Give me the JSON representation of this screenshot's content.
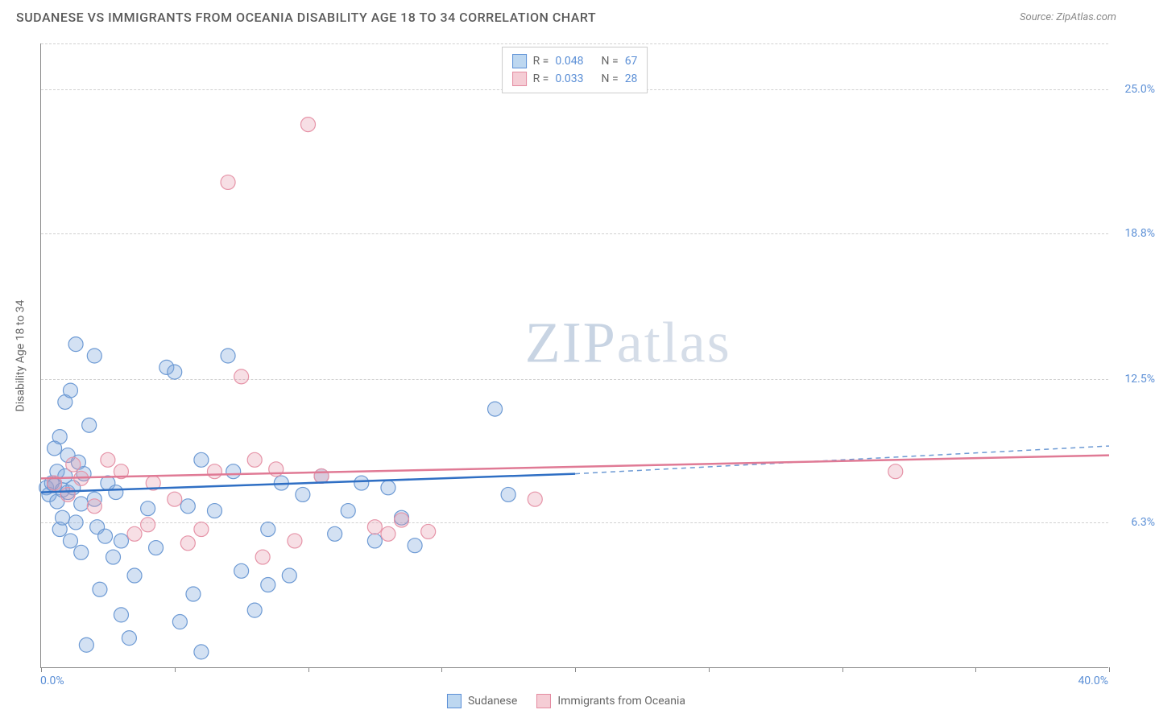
{
  "title": "SUDANESE VS IMMIGRANTS FROM OCEANIA DISABILITY AGE 18 TO 34 CORRELATION CHART",
  "source": "Source: ZipAtlas.com",
  "ylabel": "Disability Age 18 to 34",
  "watermark_a": "ZIP",
  "watermark_b": "atlas",
  "xaxis": {
    "min": 0.0,
    "max": 40.0,
    "min_label": "0.0%",
    "max_label": "40.0%",
    "ticks_x": [
      0,
      5,
      10,
      15,
      20,
      25,
      30,
      35,
      40
    ]
  },
  "yaxis": {
    "min": 0.0,
    "max": 27.0,
    "ticks": [
      {
        "v": 6.3,
        "label": "6.3%"
      },
      {
        "v": 12.5,
        "label": "12.5%"
      },
      {
        "v": 18.8,
        "label": "18.8%"
      },
      {
        "v": 25.0,
        "label": "25.0%"
      }
    ]
  },
  "series": [
    {
      "name": "Sudanese",
      "swatch_fill": "#bdd7f0",
      "swatch_stroke": "#5b8fd6",
      "point_fill": "rgba(130,170,220,0.35)",
      "point_stroke": "#6d9ad4",
      "point_r": 9,
      "line_color": "#2f6fc4",
      "dash_color": "#6d9ad4",
      "R": "0.048",
      "N": "67",
      "trend": {
        "x1": 0,
        "y1": 7.6,
        "x2": 20,
        "y2": 8.4
      },
      "trend_dash": {
        "x1": 20,
        "y1": 8.4,
        "x2": 40,
        "y2": 9.6
      },
      "points": [
        [
          0.2,
          7.8
        ],
        [
          0.3,
          7.5
        ],
        [
          0.4,
          8.0
        ],
        [
          0.5,
          7.9
        ],
        [
          0.5,
          9.5
        ],
        [
          0.6,
          7.2
        ],
        [
          0.6,
          8.5
        ],
        [
          0.7,
          6.0
        ],
        [
          0.7,
          10.0
        ],
        [
          0.8,
          7.7
        ],
        [
          0.8,
          6.5
        ],
        [
          0.9,
          8.3
        ],
        [
          0.9,
          11.5
        ],
        [
          1.0,
          7.6
        ],
        [
          1.0,
          9.2
        ],
        [
          1.1,
          5.5
        ],
        [
          1.1,
          12.0
        ],
        [
          1.2,
          7.8
        ],
        [
          1.3,
          6.3
        ],
        [
          1.3,
          14.0
        ],
        [
          1.4,
          8.9
        ],
        [
          1.5,
          7.1
        ],
        [
          1.5,
          5.0
        ],
        [
          1.6,
          8.4
        ],
        [
          1.7,
          1.0
        ],
        [
          1.8,
          10.5
        ],
        [
          2.0,
          13.5
        ],
        [
          2.0,
          7.3
        ],
        [
          2.1,
          6.1
        ],
        [
          2.2,
          3.4
        ],
        [
          2.4,
          5.7
        ],
        [
          2.5,
          8.0
        ],
        [
          2.7,
          4.8
        ],
        [
          2.8,
          7.6
        ],
        [
          3.0,
          5.5
        ],
        [
          3.0,
          2.3
        ],
        [
          3.3,
          1.3
        ],
        [
          3.5,
          4.0
        ],
        [
          4.0,
          6.9
        ],
        [
          4.3,
          5.2
        ],
        [
          4.7,
          13.0
        ],
        [
          5.0,
          12.8
        ],
        [
          5.2,
          2.0
        ],
        [
          5.5,
          7.0
        ],
        [
          5.7,
          3.2
        ],
        [
          6.0,
          0.7
        ],
        [
          6.0,
          9.0
        ],
        [
          6.5,
          6.8
        ],
        [
          7.0,
          13.5
        ],
        [
          7.2,
          8.5
        ],
        [
          7.5,
          4.2
        ],
        [
          8.0,
          2.5
        ],
        [
          8.5,
          3.6
        ],
        [
          8.5,
          6.0
        ],
        [
          9.0,
          8.0
        ],
        [
          9.3,
          4.0
        ],
        [
          9.8,
          7.5
        ],
        [
          10.5,
          8.3
        ],
        [
          11.0,
          5.8
        ],
        [
          11.5,
          6.8
        ],
        [
          12.0,
          8.0
        ],
        [
          12.5,
          5.5
        ],
        [
          13.0,
          7.8
        ],
        [
          13.5,
          6.5
        ],
        [
          14.0,
          5.3
        ],
        [
          17.0,
          11.2
        ],
        [
          17.5,
          7.5
        ]
      ]
    },
    {
      "name": "Immigrants from Oceania",
      "swatch_fill": "#f5cdd5",
      "swatch_stroke": "#e48ba0",
      "point_fill": "rgba(230,150,170,0.30)",
      "point_stroke": "#e694a8",
      "point_r": 9,
      "line_color": "#e07a95",
      "dash_color": "#e8a0b2",
      "R": "0.033",
      "N": "28",
      "trend": {
        "x1": 0,
        "y1": 8.2,
        "x2": 40,
        "y2": 9.2
      },
      "trend_dash": null,
      "points": [
        [
          0.5,
          8.0
        ],
        [
          1.0,
          7.5
        ],
        [
          1.2,
          8.8
        ],
        [
          1.5,
          8.2
        ],
        [
          2.0,
          7.0
        ],
        [
          2.5,
          9.0
        ],
        [
          3.0,
          8.5
        ],
        [
          3.5,
          5.8
        ],
        [
          4.0,
          6.2
        ],
        [
          4.2,
          8.0
        ],
        [
          5.0,
          7.3
        ],
        [
          5.5,
          5.4
        ],
        [
          6.0,
          6.0
        ],
        [
          6.5,
          8.5
        ],
        [
          7.0,
          21.0
        ],
        [
          7.5,
          12.6
        ],
        [
          8.0,
          9.0
        ],
        [
          8.3,
          4.8
        ],
        [
          8.8,
          8.6
        ],
        [
          9.5,
          5.5
        ],
        [
          10.0,
          23.5
        ],
        [
          10.5,
          8.3
        ],
        [
          12.5,
          6.1
        ],
        [
          13.0,
          5.8
        ],
        [
          13.5,
          6.4
        ],
        [
          14.5,
          5.9
        ],
        [
          18.5,
          7.3
        ],
        [
          32.0,
          8.5
        ]
      ]
    }
  ],
  "legend_bottom": [
    {
      "label": "Sudanese",
      "fill": "#bdd7f0",
      "stroke": "#5b8fd6"
    },
    {
      "label": "Immigrants from Oceania",
      "fill": "#f5cdd5",
      "stroke": "#e48ba0"
    }
  ]
}
